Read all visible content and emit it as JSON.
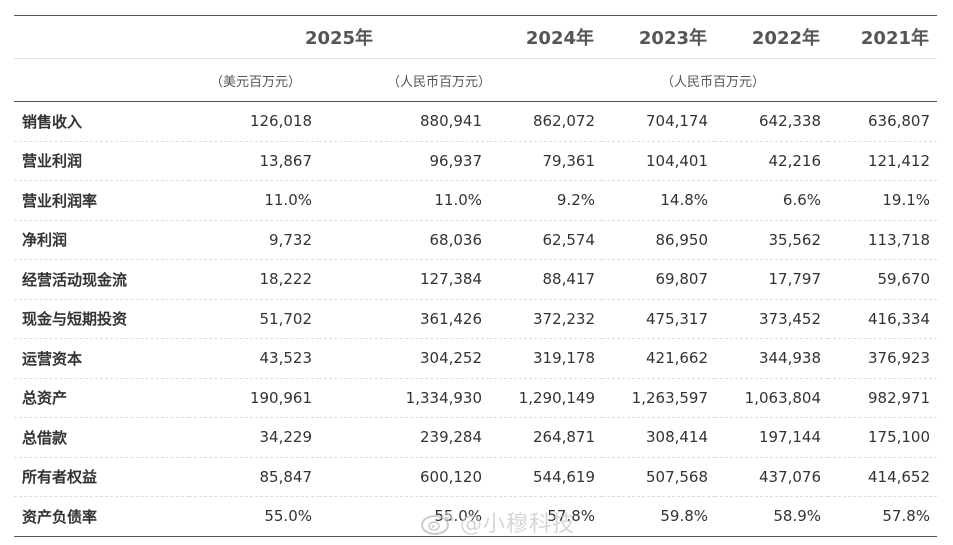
{
  "header": {
    "years": [
      "2025年",
      "2024年",
      "2023年",
      "2022年",
      "2021年"
    ],
    "units": {
      "usd": "（美元百万元）",
      "rmb_2025": "（人民币百万元）",
      "rmb_hist": "（人民币百万元）"
    }
  },
  "rows": [
    {
      "label": "销售收入",
      "values": [
        "126,018",
        "880,941",
        "862,072",
        "704,174",
        "642,338",
        "636,807"
      ]
    },
    {
      "label": "营业利润",
      "values": [
        "13,867",
        "96,937",
        "79,361",
        "104,401",
        "42,216",
        "121,412"
      ]
    },
    {
      "label": "营业利润率",
      "values": [
        "11.0%",
        "11.0%",
        "9.2%",
        "14.8%",
        "6.6%",
        "19.1%"
      ]
    },
    {
      "label": "净利润",
      "values": [
        "9,732",
        "68,036",
        "62,574",
        "86,950",
        "35,562",
        "113,718"
      ]
    },
    {
      "label": "经营活动现金流",
      "values": [
        "18,222",
        "127,384",
        "88,417",
        "69,807",
        "17,797",
        "59,670"
      ]
    },
    {
      "label": "现金与短期投资",
      "values": [
        "51,702",
        "361,426",
        "372,232",
        "475,317",
        "373,452",
        "416,334"
      ]
    },
    {
      "label": "运营资本",
      "values": [
        "43,523",
        "304,252",
        "319,178",
        "421,662",
        "344,938",
        "376,923"
      ]
    },
    {
      "label": "总资产",
      "values": [
        "190,961",
        "1,334,930",
        "1,290,149",
        "1,263,597",
        "1,063,804",
        "982,971"
      ]
    },
    {
      "label": "总借款",
      "values": [
        "34,229",
        "239,284",
        "264,871",
        "308,414",
        "197,144",
        "175,100"
      ]
    },
    {
      "label": "所有者权益",
      "values": [
        "85,847",
        "600,120",
        "544,619",
        "507,568",
        "437,076",
        "414,652"
      ]
    },
    {
      "label": "资产负债率",
      "values": [
        "55.0%",
        "55.0%",
        "57.8%",
        "59.8%",
        "58.9%",
        "57.8%"
      ]
    }
  ],
  "watermark": {
    "text": "@小穆科技",
    "icon": "weibo-logo-icon"
  }
}
